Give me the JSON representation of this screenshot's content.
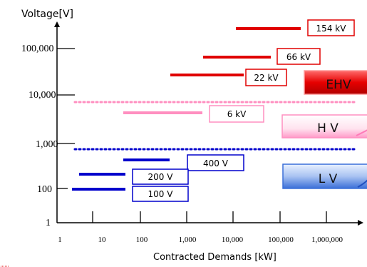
{
  "chart_data": {
    "type": "diagram",
    "ylabel": "Voltage[V]",
    "xlabel": "Contracted Demands [kW]",
    "y_ticks": [
      "100,000",
      "10,000",
      "1,000",
      "100",
      "1"
    ],
    "x_ticks": [
      "1",
      "10",
      "100",
      "1,000",
      "10,000",
      "100,000",
      "1,000,000"
    ],
    "voltage_ranges": [
      {
        "label": "154 kV",
        "color": "#e00000"
      },
      {
        "label": "66 kV",
        "color": "#e00000"
      },
      {
        "label": "22 kV",
        "color": "#e00000"
      },
      {
        "label": "6 kV",
        "color": "#ff8fc0"
      },
      {
        "label": "400 V",
        "color": "#0000cc"
      },
      {
        "label": "200 V",
        "color": "#0000cc"
      },
      {
        "label": "100 V",
        "color": "#0000cc"
      }
    ],
    "classes": [
      {
        "label": "EHV",
        "color": "#e00000"
      },
      {
        "label": "H V",
        "color": "#ff9ac8"
      },
      {
        "label": "L V",
        "color": "#3a6fd8"
      }
    ],
    "divider_lines": [
      {
        "between": "EHV / H V",
        "color": "#ff8fc0",
        "style": "dotted"
      },
      {
        "between": "H V / L V",
        "color": "#0000cc",
        "style": "dotted"
      }
    ]
  }
}
